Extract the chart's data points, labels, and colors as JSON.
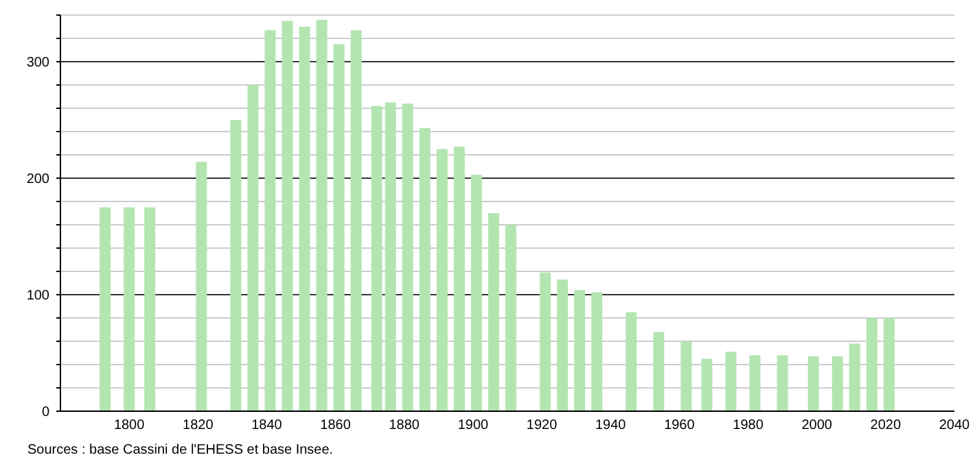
{
  "chart_data": {
    "type": "bar",
    "annotations": [
      "Sources : base Cassini de l'EHESS et base Insee."
    ],
    "x": [
      1793,
      1800,
      1806,
      1821,
      1831,
      1836,
      1841,
      1846,
      1851,
      1856,
      1861,
      1866,
      1872,
      1876,
      1881,
      1886,
      1891,
      1896,
      1901,
      1906,
      1911,
      1921,
      1926,
      1931,
      1936,
      1946,
      1954,
      1962,
      1968,
      1975,
      1982,
      1990,
      1999,
      2006,
      2011,
      2016,
      2021
    ],
    "values": [
      175,
      175,
      175,
      214,
      250,
      280,
      327,
      335,
      330,
      336,
      315,
      327,
      262,
      265,
      264,
      243,
      225,
      227,
      203,
      170,
      160,
      119,
      113,
      104,
      102,
      85,
      68,
      60,
      45,
      51,
      48,
      48,
      47,
      47,
      58,
      80,
      80
    ],
    "color": "#b3e5b0",
    "xlim": [
      1780,
      2040
    ],
    "xticks": [
      1800,
      1820,
      1840,
      1860,
      1880,
      1900,
      1920,
      1940,
      1960,
      1980,
      2000,
      2020,
      2040
    ],
    "ylim": [
      0,
      340
    ],
    "yticks": [
      0,
      {
        "value": 20,
        "label": null
      },
      {
        "value": 40,
        "label": null
      },
      {
        "value": 60,
        "label": null
      },
      {
        "value": 80,
        "label": null
      },
      100,
      {
        "value": 120,
        "label": null
      },
      {
        "value": 140,
        "label": null
      },
      {
        "value": 160,
        "label": null
      },
      {
        "value": 180,
        "label": null
      },
      200,
      {
        "value": 220,
        "label": null
      },
      {
        "value": 240,
        "label": null
      },
      {
        "value": 260,
        "label": null
      },
      {
        "value": 280,
        "label": null
      },
      300,
      {
        "value": 320,
        "label": null
      },
      {
        "value": 340,
        "label": null
      }
    ],
    "grid": true
  }
}
